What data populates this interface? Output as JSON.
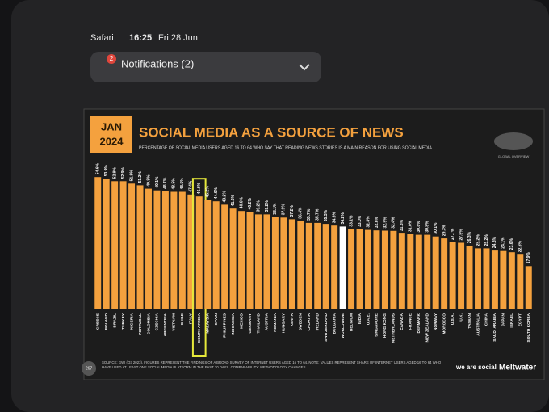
{
  "status_bar": {
    "app": "Safari",
    "time": "16:25",
    "date": "Fri 28 Jun"
  },
  "notification": {
    "badge": "2",
    "label": "Notifications (2)"
  },
  "chart_data": {
    "type": "bar",
    "date_badge": [
      "JAN",
      "2024"
    ],
    "title": "SOCIAL MEDIA AS A SOURCE OF NEWS",
    "subtitle": "PERCENTAGE OF SOCIAL MEDIA USERS AGED 16 TO 64 WHO SAY THAT READING NEWS STORIES IS A MAIN REASON FOR USING SOCIAL MEDIA",
    "map_label": "GLOBAL OVERVIEW",
    "categories": [
      "GREECE",
      "POLAND",
      "BRAZIL",
      "TURKEY",
      "NIGERIA",
      "PORTUGAL",
      "COLOMBIA",
      "CZECHIA",
      "ARGENTINA",
      "VIETNAM",
      "CHILE",
      "ITALY",
      "SOUTH AFRICA",
      "MALAYSIA",
      "SPAIN",
      "PHILIPPINES",
      "INDONESIA",
      "MEXICO",
      "GERMANY",
      "THAILAND",
      "AUSTRIA",
      "ROMANIA",
      "HUNGARY",
      "KENYA",
      "SWEDEN",
      "CROATIA",
      "IRELAND",
      "SWITZERLAND",
      "BULGARIA",
      "WORLDWIDE",
      "BELGIUM",
      "INDIA",
      "U.A.E.",
      "SINGAPORE",
      "HONG KONG",
      "NETHERLANDS",
      "CANADA",
      "FRANCE",
      "DENMARK",
      "NEW ZEALAND",
      "NORWAY",
      "MOROCCO",
      "U.S.A.",
      "U.K.",
      "TAIWAN",
      "AUSTRALIA",
      "CHINA",
      "SAUDI ARABIA",
      "JAPAN",
      "ISRAEL",
      "EGYPT",
      "SOUTH KOREA"
    ],
    "values": [
      54.6,
      53.9,
      52.9,
      52.9,
      51.9,
      51.2,
      49.8,
      49.1,
      48.7,
      48.5,
      48.5,
      47.4,
      46.6,
      45.2,
      44.6,
      43.2,
      41.6,
      40.6,
      40.2,
      39.2,
      39.2,
      38.1,
      37.9,
      37.2,
      36.4,
      35.7,
      35.7,
      35.3,
      34.6,
      34.2,
      33.1,
      33.0,
      32.8,
      32.6,
      32.5,
      32.4,
      31.3,
      31.0,
      30.8,
      30.8,
      30.1,
      29.3,
      27.7,
      27.5,
      26.3,
      25.2,
      25.2,
      24.3,
      24.1,
      23.6,
      22.6,
      17.9
    ],
    "value_labels": [
      "54.6%",
      "53.9%",
      "52.9%",
      "52.9%",
      "51.9%",
      "51.2%",
      "49.8%",
      "49.1%",
      "48.7%",
      "48.5%",
      "48.5%",
      "47.4%",
      "46.6%",
      "45.2%",
      "44.6%",
      "43.2%",
      "41.6%",
      "40.6%",
      "40.2%",
      "39.2%",
      "39.2%",
      "38.1%",
      "37.9%",
      "37.2%",
      "36.4%",
      "35.7%",
      "35.7%",
      "35.3%",
      "34.6%",
      "34.2%",
      "33.1%",
      "33.0%",
      "32.8%",
      "32.6%",
      "32.5%",
      "32.4%",
      "31.3%",
      "31.0%",
      "30.8%",
      "30.8%",
      "30.1%",
      "29.3%",
      "27.7%",
      "27.5%",
      "26.3%",
      "25.2%",
      "25.2%",
      "24.3%",
      "24.1%",
      "23.6%",
      "22.6%",
      "17.9%"
    ],
    "color": "#f4a13e",
    "reference_category": "WORLDWIDE",
    "reference_color": "#ffffff",
    "highlighted_category": "SOUTH AFRICA",
    "highlight_color": "#e6e83a",
    "page_number": "267",
    "source": "SOURCE: GWI (Q3 2023). FIGURES REPRESENT THE FINDINGS OF A BROAD SURVEY OF INTERNET USERS AGED 16 TO 64. NOTE: VALUES REPRESENT SHARE OF INTERNET USERS AGED 16 TO 64 WHO HAVE USED AT LEAST ONE SOCIAL MEDIA PLATFORM IN THE PAST 30 DAYS. COMPARABILITY: METHODOLOGY CHANGES.",
    "brand_1": "we are social",
    "brand_2": "Meltwater"
  }
}
